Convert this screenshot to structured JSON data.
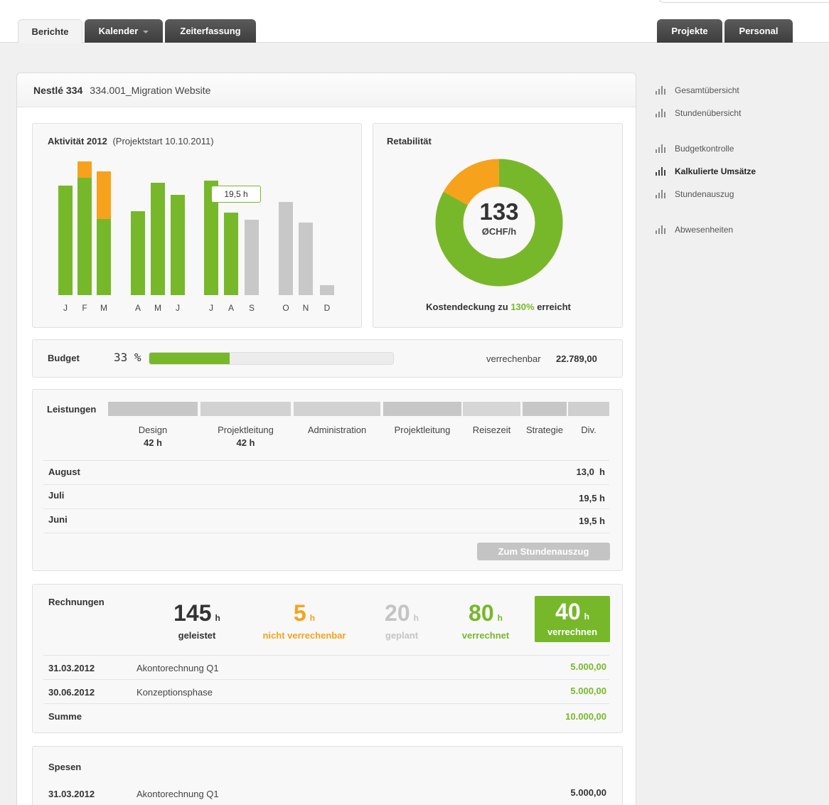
{
  "tabs": {
    "berichte": "Berichte",
    "kalender": "Kalender",
    "zeiterfassung": "Zeiterfassung",
    "projekte": "Projekte",
    "personal": "Personal"
  },
  "project": {
    "client": "Nestlé 334",
    "name": "334.001_Migration Website"
  },
  "activity": {
    "title": "Aktivität 2012",
    "subtitle": "(Projektstart 10.10.2011)",
    "tooltip": "19,5 h"
  },
  "chart_data": {
    "type": "bar",
    "stacked": true,
    "categories": [
      "J",
      "F",
      "M",
      "A",
      "M",
      "J",
      "J",
      "A",
      "S",
      "O",
      "N",
      "D"
    ],
    "series": [
      {
        "color": "#77b82a",
        "values": [
          154,
          165,
          107,
          118,
          158,
          141,
          161,
          116,
          0,
          0,
          0,
          0
        ]
      },
      {
        "color": "#f6a21c",
        "values": [
          0,
          23,
          67,
          0,
          0,
          0,
          0,
          0,
          0,
          0,
          0,
          0
        ]
      },
      {
        "color": "#c8c8c8",
        "values": [
          0,
          0,
          0,
          0,
          0,
          0,
          0,
          0,
          106,
          131,
          102,
          14
        ]
      }
    ],
    "title": "",
    "xlabel": "",
    "ylabel": "",
    "ylim": [
      0,
      200
    ],
    "grid": false
  },
  "donut": {
    "title": "Retabilität",
    "value": "133",
    "unit": "ØCHF/h",
    "green_fraction": 0.83,
    "caption_pre": "Kostendeckung zu",
    "caption_pct": "130%",
    "caption_post": "erreicht",
    "colors": {
      "green": "#77b82a",
      "orange": "#f6a21c"
    }
  },
  "budget": {
    "label": "Budget",
    "percent_label": "33 %",
    "progress": 0.33,
    "verrechenbar_label": "verrechenbar",
    "verrechenbar_value": "22.789,00"
  },
  "leistungen": {
    "label": "Leistungen",
    "items": [
      {
        "name": "Design",
        "hours": "42 h"
      },
      {
        "name": "Projektleitung",
        "hours": "42 h"
      },
      {
        "name": "Administration",
        "hours": ""
      },
      {
        "name": "Projektleitung",
        "hours": ""
      },
      {
        "name": "Reisezeit",
        "hours": ""
      },
      {
        "name": "Strategie",
        "hours": ""
      },
      {
        "name": "Div.",
        "hours": ""
      }
    ],
    "rows": [
      {
        "month": "August",
        "value": "13,0  h"
      },
      {
        "month": "Juli",
        "value": "19,5 h"
      },
      {
        "month": "Juni",
        "value": "19,5 h"
      }
    ],
    "button": "Zum Stundenauszug"
  },
  "rechnungen": {
    "label": "Rechnungen",
    "stats": [
      {
        "num": "145",
        "unit": "h",
        "label": "geleistet"
      },
      {
        "num": "5",
        "unit": "h",
        "label": "nicht verrechenbar"
      },
      {
        "num": "20",
        "unit": "h",
        "label": "geplant"
      },
      {
        "num": "80",
        "unit": "h",
        "label": "verrechnet"
      },
      {
        "num": "40",
        "unit": "h",
        "label": "verrechnen"
      }
    ],
    "rows": [
      {
        "date": "31.03.2012",
        "desc": "Akontorechnung Q1",
        "amount": "5.000,00"
      },
      {
        "date": "30.06.2012",
        "desc": "Konzeptionsphase",
        "amount": "5.000,00"
      }
    ],
    "sum_label": "Summe",
    "sum_amount": "10.000,00"
  },
  "spesen": {
    "label": "Spesen",
    "rows": [
      {
        "date": "31.03.2012",
        "desc": "Akontorechnung Q1",
        "amount": "5.000,00"
      }
    ]
  },
  "sidebar": {
    "items": [
      {
        "label": "Gesamtübersicht",
        "icon": "bar-chart-icon"
      },
      {
        "label": "Stundenübersicht",
        "icon": "bar-chart-icon"
      },
      {
        "label": "Budgetkontrolle",
        "icon": "bar-chart-icon"
      },
      {
        "label": "Kalkulierte Umsätze",
        "icon": "bar-chart-icon"
      },
      {
        "label": "Stundenauszug",
        "icon": "bar-chart-icon"
      },
      {
        "label": "Abwesenheiten",
        "icon": "bar-chart-icon"
      }
    ]
  }
}
